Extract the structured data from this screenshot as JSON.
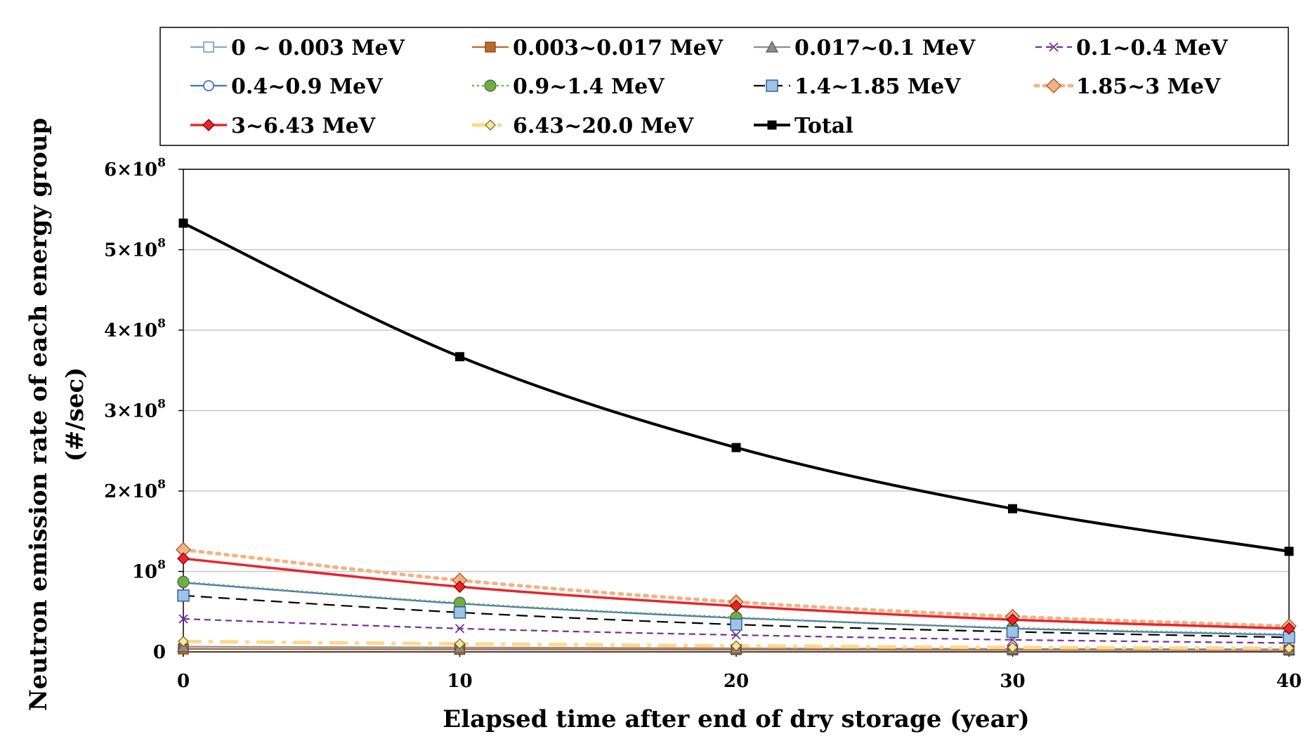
{
  "chart_data": {
    "type": "line",
    "title": "",
    "xlabel": "Elapsed time after end of dry storage (year)",
    "ylabel_line1": "Neutron emission rate of each energy group",
    "ylabel_line2": "(#/sec)",
    "x": [
      0,
      10,
      20,
      30,
      40
    ],
    "xlim": [
      0,
      40
    ],
    "ylim": [
      0,
      600000000
    ],
    "x_tick_labels": [
      "0",
      "10",
      "20",
      "30",
      "40"
    ],
    "y_ticks": [
      {
        "value": 0,
        "base": "0",
        "exp": ""
      },
      {
        "value": 100000000,
        "base": "10",
        "exp": "8"
      },
      {
        "value": 200000000,
        "base": "2×10",
        "exp": "8"
      },
      {
        "value": 300000000,
        "base": "3×10",
        "exp": "8"
      },
      {
        "value": 400000000,
        "base": "4×10",
        "exp": "8"
      },
      {
        "value": 500000000,
        "base": "5×10",
        "exp": "8"
      },
      {
        "value": 600000000,
        "base": "6×10",
        "exp": "8"
      }
    ],
    "grid": "horizontal",
    "legend_position": "top",
    "series": [
      {
        "name": "0 ~ 0.003 MeV",
        "values": [
          4000000,
          3500000,
          3000000,
          2600000,
          2300000
        ],
        "color": "#7ea6cf",
        "marker": "square-open",
        "dash": ""
      },
      {
        "name": "0.003~0.017 MeV",
        "values": [
          3500000,
          3000000,
          2700000,
          2400000,
          2100000
        ],
        "color": "#c0682c",
        "marker": "square",
        "dash": ""
      },
      {
        "name": "0.017~0.1 MeV",
        "values": [
          6500000,
          5500000,
          4500000,
          3800000,
          3200000
        ],
        "color": "#8c8c8c",
        "marker": "triangle",
        "dash": ""
      },
      {
        "name": "0.1~0.4 MeV",
        "values": [
          41000000,
          29000000,
          21000000,
          15000000,
          11000000
        ],
        "color": "#7030a0",
        "marker": "x",
        "dash": "9,6"
      },
      {
        "name": "0.4~0.9 MeV",
        "values": [
          86000000,
          60000000,
          42000000,
          29000000,
          21000000
        ],
        "color": "#4472c4",
        "marker": "circle-open",
        "dash": ""
      },
      {
        "name": "0.9~1.4 MeV",
        "values": [
          87000000,
          61000000,
          43000000,
          30000000,
          22000000
        ],
        "color": "#70ad47",
        "marker": "circle",
        "dash": "3,4"
      },
      {
        "name": "1.4~1.85 MeV",
        "values": [
          70000000,
          49000000,
          34000000,
          25000000,
          18000000
        ],
        "color": "#000000",
        "marker": "square-blue",
        "dash": "16,9"
      },
      {
        "name": "1.85~3 MeV",
        "values": [
          127000000,
          89000000,
          62000000,
          44000000,
          32000000
        ],
        "color": "#f4b183",
        "marker": "diamond",
        "dash": "4,8"
      },
      {
        "name": "3~6.43 MeV",
        "values": [
          116000000,
          81000000,
          57000000,
          40000000,
          29000000
        ],
        "color": "#e8262b",
        "marker": "diamond-red",
        "dash": ""
      },
      {
        "name": "6.43~20.0 MeV",
        "values": [
          13000000,
          10000000,
          7500000,
          5500000,
          4500000
        ],
        "color": "#ffd88a",
        "marker": "diamond-small",
        "dash": "26,10,6,10"
      },
      {
        "name": "Total",
        "values": [
          533000000,
          367000000,
          254000000,
          178000000,
          125000000
        ],
        "color": "#000000",
        "marker": "square-black",
        "dash": ""
      }
    ]
  }
}
